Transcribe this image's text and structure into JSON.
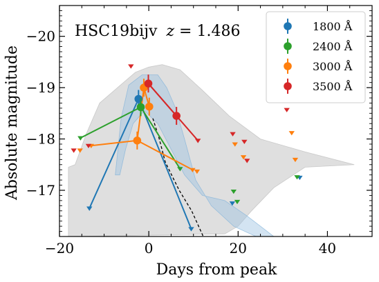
{
  "chart_data": {
    "type": "scatter",
    "xlabel": "Days from peak",
    "ylabel": "Absolute magnitude",
    "xlim": [
      -20,
      50
    ],
    "ylim": [
      -16.1,
      -20.6
    ],
    "y_inverted": true,
    "x_ticks": [
      -20,
      0,
      20,
      40
    ],
    "x_tick_labels": [
      "−20",
      "0",
      "20",
      "40"
    ],
    "y_ticks": [
      -20,
      -19,
      -18,
      -17
    ],
    "y_tick_labels": [
      "−20",
      "−19",
      "−18",
      "−17"
    ],
    "annotation": {
      "name": "HSC19bijv",
      "z_label": "z",
      "z_value": " = 1.486"
    },
    "legend_position": "top-right",
    "series": [
      {
        "name": "1800 Å",
        "color": "#1f77b4",
        "detections": [
          {
            "x": -2.3,
            "y": -18.78
          }
        ],
        "upper_limits": [
          {
            "x": -13.3,
            "y": -16.65
          },
          {
            "x": 9.5,
            "y": -16.25
          },
          {
            "x": 18.7,
            "y": -16.75
          },
          {
            "x": 33.8,
            "y": -17.25
          }
        ],
        "connected_limits": [
          {
            "x": -13.3,
            "y": -16.65
          },
          {
            "x": 9.5,
            "y": -16.25
          }
        ]
      },
      {
        "name": "2400 Å",
        "color": "#2ca02c",
        "detections": [
          {
            "x": -1.8,
            "y": -18.62
          }
        ],
        "upper_limits": [
          {
            "x": -15.3,
            "y": -18.02
          },
          {
            "x": 7.0,
            "y": -17.42
          },
          {
            "x": 19.0,
            "y": -16.98
          },
          {
            "x": 19.8,
            "y": -16.78
          },
          {
            "x": 33.2,
            "y": -17.26
          }
        ],
        "connected_limits": [
          {
            "x": -15.3,
            "y": -18.02
          },
          {
            "x": 7.0,
            "y": -17.42
          }
        ]
      },
      {
        "name": "3000 Å",
        "color": "#ff7f0e",
        "detections": [
          {
            "x": -2.6,
            "y": -17.97
          },
          {
            "x": -1.1,
            "y": -19.0
          },
          {
            "x": 0.1,
            "y": -18.63
          }
        ],
        "upper_limits": [
          {
            "x": -15.4,
            "y": -17.78
          },
          {
            "x": -12.9,
            "y": -17.87
          },
          {
            "x": 9.8,
            "y": -17.4
          },
          {
            "x": 10.8,
            "y": -17.37
          },
          {
            "x": 19.3,
            "y": -17.9
          },
          {
            "x": 21.2,
            "y": -17.65
          },
          {
            "x": 32.0,
            "y": -18.12
          },
          {
            "x": 32.8,
            "y": -17.6
          }
        ],
        "connected_limits": [
          {
            "x": -12.9,
            "y": -17.87
          },
          {
            "x": 9.8,
            "y": -17.4
          }
        ]
      },
      {
        "name": "3500 Å",
        "color": "#d62728",
        "detections": [
          {
            "x": -0.1,
            "y": -19.08
          },
          {
            "x": 6.2,
            "y": -18.45
          }
        ],
        "upper_limits": [
          {
            "x": -16.8,
            "y": -17.78
          },
          {
            "x": -13.5,
            "y": -17.87
          },
          {
            "x": -4.0,
            "y": -19.42
          },
          {
            "x": 11.0,
            "y": -17.97
          },
          {
            "x": 18.8,
            "y": -18.1
          },
          {
            "x": 21.4,
            "y": -17.95
          },
          {
            "x": 22.0,
            "y": -17.58
          },
          {
            "x": 30.9,
            "y": -18.57
          }
        ],
        "connected_limits": [
          {
            "x": 11.0,
            "y": -17.97
          }
        ]
      }
    ]
  }
}
